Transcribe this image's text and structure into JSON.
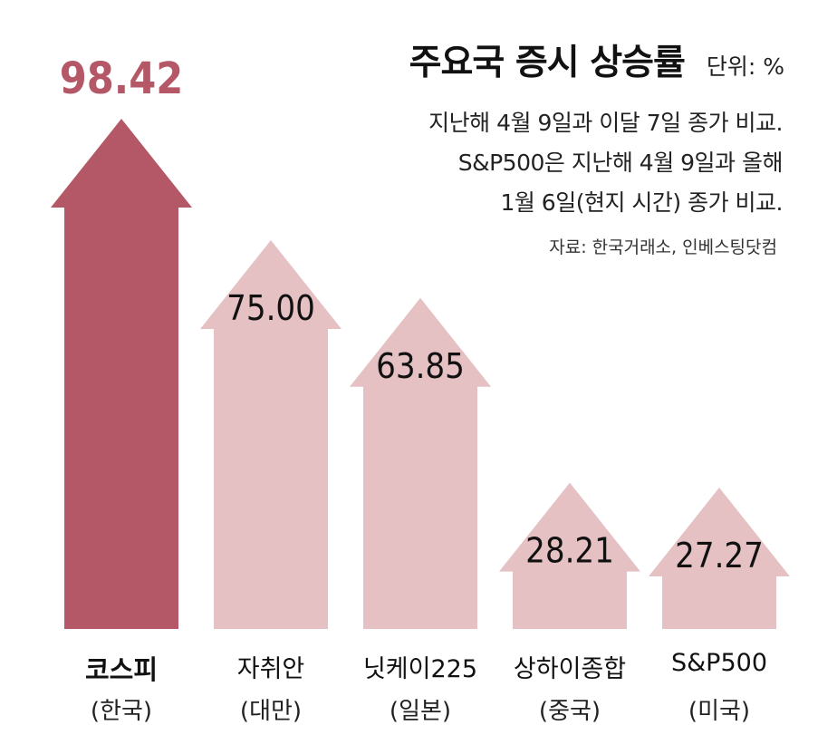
{
  "header": {
    "title": "주요국 증시 상승률",
    "unit": "단위: %",
    "notes": [
      "지난해 4월 9일과 이달 7일 종가 비교.",
      "S&P500은 지난해 4월 9일과 올해",
      "1월 6일(현지 시간) 종가 비교."
    ],
    "source": "자료: 한국거래소, 인베스팅닷컴"
  },
  "colors": {
    "highlight": "#b45766",
    "default": "#e5c1c4",
    "highlight_label": "#b45766",
    "default_label": "#111111"
  },
  "chart_data": {
    "type": "bar",
    "categories": [
      "코스피",
      "자취안",
      "닛케이225",
      "상하이종합",
      "S&P500"
    ],
    "countries": [
      "(한국)",
      "(대만)",
      "(일본)",
      "(중국)",
      "(미국)"
    ],
    "values": [
      98.42,
      75.0,
      63.85,
      28.21,
      27.27
    ],
    "value_labels": [
      "98.42",
      "75.00",
      "63.85",
      "28.21",
      "27.27"
    ],
    "highlight_index": 0,
    "title": "주요국 증시 상승률",
    "ylabel": "",
    "grid": false,
    "ylim": [
      0,
      100
    ]
  }
}
